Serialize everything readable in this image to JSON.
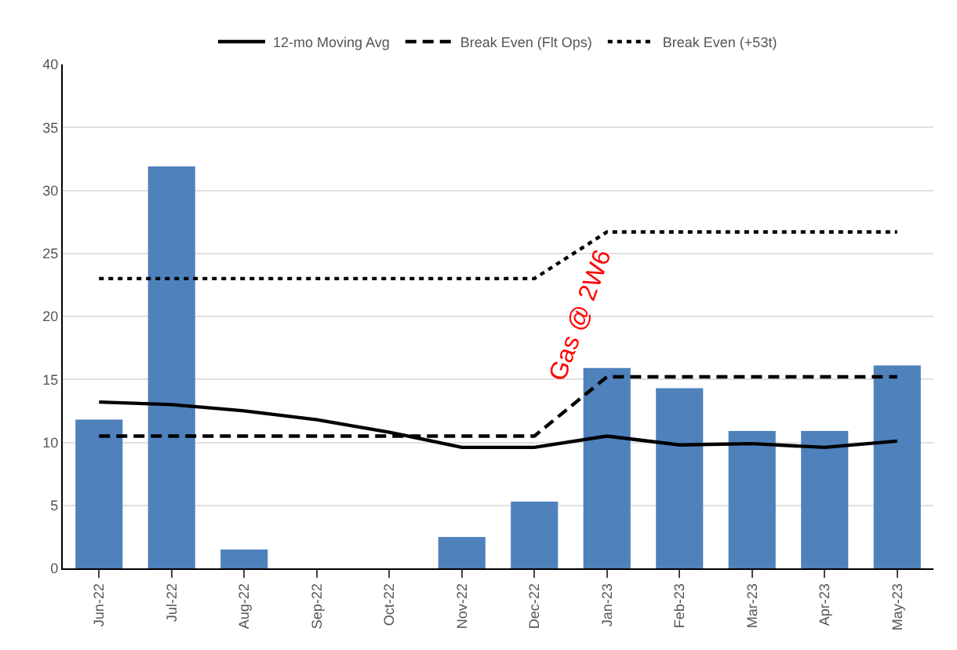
{
  "chart_data": {
    "type": "bar",
    "categories": [
      "Jun-22",
      "Jul-22",
      "Aug-22",
      "Sep-22",
      "Oct-22",
      "Nov-22",
      "Dec-22",
      "Jan-23",
      "Feb-23",
      "Mar-23",
      "Apr-23",
      "May-23"
    ],
    "series": [
      {
        "color": "#4f81bd",
        "values": [
          11.8,
          31.9,
          1.5,
          0,
          0,
          2.5,
          5.3,
          15.9,
          14.3,
          10.9,
          10.9,
          16.1
        ]
      },
      {
        "type": "line",
        "name": "12-mo Moving Avg",
        "color": "#000000",
        "line_style": "solid",
        "values": [
          13.2,
          13.0,
          12.5,
          11.8,
          10.8,
          9.6,
          9.6,
          10.5,
          9.8,
          9.9,
          9.6,
          10.1
        ]
      },
      {
        "type": "line",
        "name": "Break Even (Flt Ops)",
        "color": "#000000",
        "line_style": "dashed",
        "values": [
          10.5,
          10.5,
          10.5,
          10.5,
          10.5,
          10.5,
          10.5,
          15.2,
          15.2,
          15.2,
          15.2,
          15.2
        ]
      },
      {
        "type": "line",
        "name": "Break Even (+53t)",
        "color": "#000000",
        "line_style": "dotted",
        "values": [
          23,
          23,
          23,
          23,
          23,
          23,
          23,
          26.7,
          26.7,
          26.7,
          26.7,
          26.7
        ]
      }
    ],
    "ylim": [
      0,
      40
    ],
    "yticks": [
      0,
      5,
      10,
      15,
      20,
      25,
      30,
      35,
      40
    ],
    "grid": "y",
    "legend": "top",
    "marker": "none",
    "annotations": [
      "Gas @ 2W6"
    ]
  }
}
